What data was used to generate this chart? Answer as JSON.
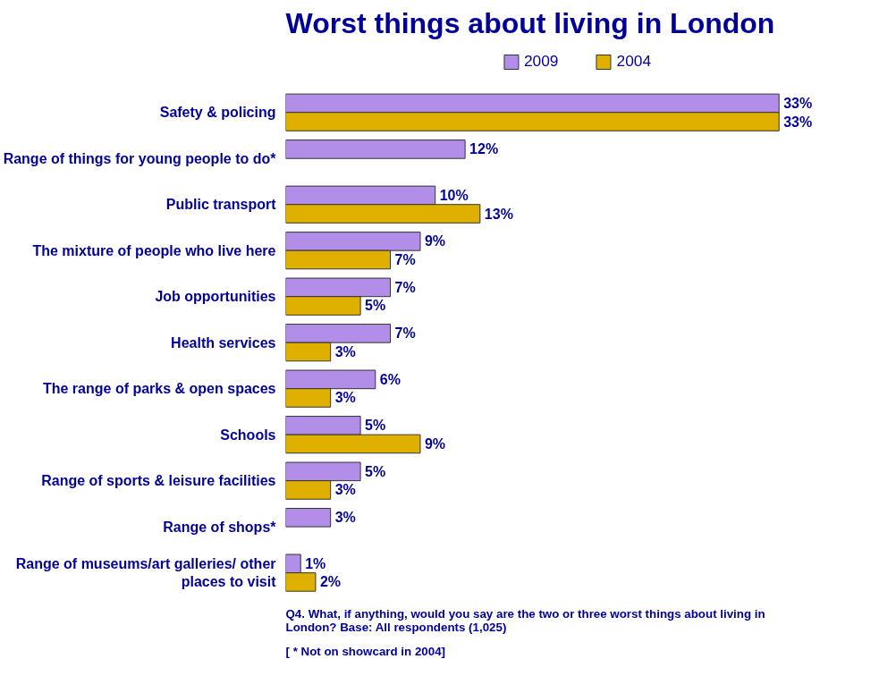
{
  "chart_data": {
    "type": "bar",
    "orientation": "horizontal",
    "title": "Worst things about living in London",
    "categories": [
      "Safety & policing",
      "Range of things for young people to do*",
      "Public transport",
      "The mixture of people who live here",
      "Job opportunities",
      "Health services",
      "The range of parks & open spaces",
      "Schools",
      "Range of sports & leisure facilities",
      "Range of shops*",
      "Range of museums/art galleries/ other places to visit"
    ],
    "series": [
      {
        "name": "2009",
        "color": "#b38ee8",
        "values": [
          33,
          12,
          10,
          9,
          7,
          7,
          6,
          5,
          5,
          3,
          1
        ],
        "value_labels": [
          "33%",
          "12%",
          "10%",
          "9%",
          "7%",
          "7%",
          "6%",
          "5%",
          "5%",
          "3%",
          "1%"
        ]
      },
      {
        "name": "2004",
        "color": "#e0b000",
        "values": [
          33,
          null,
          13,
          7,
          5,
          3,
          3,
          9,
          3,
          null,
          2
        ],
        "value_labels": [
          "33%",
          null,
          "13%",
          "7%",
          "5%",
          "3%",
          "3%",
          "9%",
          "3%",
          null,
          "2%"
        ]
      }
    ],
    "legend": "top",
    "grid": false,
    "tick_labels": "y",
    "annotations": [
      "[ * Not on showcard in 2004]",
      "Q4. What, if anything, would you say are the two or three worst things about living in London? Base: All respondents (1,025)"
    ]
  }
}
